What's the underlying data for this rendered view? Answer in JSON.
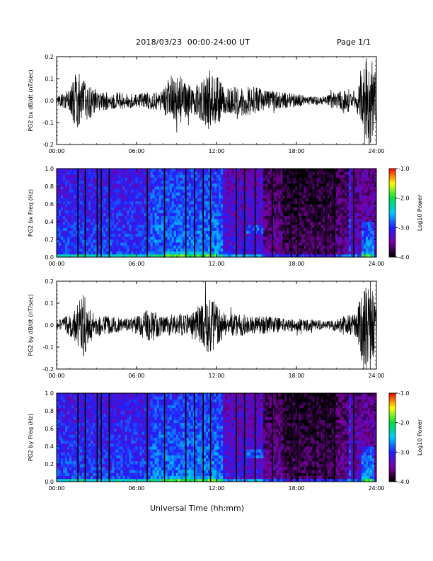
{
  "header": {
    "title": "2018/03/23  00:00-24:00 UT",
    "page": "Page 1/1"
  },
  "footer": {
    "xlabel": "Universal Time (hh:mm)"
  },
  "chart_data": [
    {
      "type": "line",
      "ylabel": "PG2 bx dB/dt (nT/sec)",
      "xlim": [
        0,
        24
      ],
      "ylim": [
        -0.2,
        0.2
      ],
      "x_ticks": [
        "00:00",
        "06:00",
        "12:00",
        "18:00",
        "24:00"
      ],
      "y_ticks": [
        "-0.2",
        "-0.1",
        "0.0",
        "0.1",
        "0.2"
      ],
      "envelope": {
        "hours": [
          0,
          1,
          1.5,
          2,
          2.5,
          3,
          4,
          5,
          6,
          7,
          8,
          8.5,
          9,
          9.5,
          10,
          10.5,
          11,
          11.5,
          12,
          12.5,
          13,
          14,
          15,
          16,
          17,
          18,
          19,
          20,
          20.5,
          21,
          21.5,
          22,
          22.5,
          23,
          23.5,
          24
        ],
        "amplitude": [
          0.02,
          0.05,
          0.14,
          0.1,
          0.08,
          0.05,
          0.04,
          0.04,
          0.03,
          0.04,
          0.05,
          0.11,
          0.16,
          0.09,
          0.07,
          0.07,
          0.1,
          0.14,
          0.12,
          0.07,
          0.06,
          0.07,
          0.06,
          0.05,
          0.04,
          0.03,
          0.02,
          0.02,
          0.03,
          0.05,
          0.06,
          0.05,
          0.04,
          0.2,
          0.25,
          0.1
        ]
      }
    },
    {
      "type": "heatmap",
      "ylabel": "PG2 bx Freq (Hz)",
      "xlim": [
        0,
        24
      ],
      "ylim": [
        0,
        1
      ],
      "x_ticks": [
        "00:00",
        "06:00",
        "12:00",
        "18:00",
        "24:00"
      ],
      "y_ticks": [
        "0.0",
        "0.2",
        "0.4",
        "0.6",
        "0.8",
        "1.0"
      ],
      "colorbar": {
        "label": "Log10 Power",
        "ticks": [
          "-1.0",
          "-2.0",
          "-3.0",
          "-4.0"
        ],
        "range": [
          -4,
          -1
        ],
        "colors": [
          "#000000",
          "#7a00a0",
          "#2020ff",
          "#00c8ff",
          "#00e040",
          "#ffff00",
          "#ff0000"
        ]
      },
      "gap_hours": [
        1.6,
        2.15,
        3.05,
        3.35,
        3.95,
        6.8,
        8.1,
        9.7,
        10.35,
        11.0,
        11.55,
        13.5,
        14.1,
        14.9,
        16.2,
        17.6,
        18.1,
        19.4,
        20.2,
        20.85,
        22.3
      ]
    },
    {
      "type": "line",
      "ylabel": "PG2 by dB/dt (nT/sec)",
      "xlim": [
        0,
        24
      ],
      "ylim": [
        -0.2,
        0.2
      ],
      "x_ticks": [
        "00:00",
        "06:00",
        "12:00",
        "18:00",
        "24:00"
      ],
      "y_ticks": [
        "-0.2",
        "-0.1",
        "0.0",
        "0.1",
        "0.2"
      ],
      "envelope": {
        "hours": [
          0,
          1,
          1.5,
          2,
          2.5,
          3,
          4,
          5,
          6,
          7,
          8,
          8.5,
          9,
          9.5,
          10,
          10.5,
          11,
          11.5,
          12,
          12.5,
          13,
          14,
          15,
          16,
          17,
          18,
          19,
          20,
          20.5,
          21,
          21.5,
          22,
          22.5,
          23,
          23.5,
          24
        ],
        "amplitude": [
          0.02,
          0.05,
          0.1,
          0.16,
          0.08,
          0.05,
          0.04,
          0.03,
          0.04,
          0.08,
          0.04,
          0.05,
          0.06,
          0.05,
          0.06,
          0.07,
          0.1,
          0.14,
          0.1,
          0.06,
          0.05,
          0.05,
          0.04,
          0.04,
          0.03,
          0.03,
          0.03,
          0.02,
          0.02,
          0.03,
          0.04,
          0.05,
          0.05,
          0.2,
          0.25,
          0.08
        ]
      }
    },
    {
      "type": "heatmap",
      "ylabel": "PG2 by Freq (Hz)",
      "xlim": [
        0,
        24
      ],
      "ylim": [
        0,
        1
      ],
      "x_ticks": [
        "00:00",
        "06:00",
        "12:00",
        "18:00",
        "24:00"
      ],
      "y_ticks": [
        "0.0",
        "0.2",
        "0.4",
        "0.6",
        "0.8",
        "1.0"
      ],
      "colorbar": {
        "label": "Log10 Power",
        "ticks": [
          "-1.0",
          "-2.0",
          "-3.0",
          "-4.0"
        ],
        "range": [
          -4,
          -1
        ],
        "colors": [
          "#000000",
          "#7a00a0",
          "#2020ff",
          "#00c8ff",
          "#00e040",
          "#ffff00",
          "#ff0000"
        ]
      },
      "gap_hours": [
        1.6,
        2.15,
        3.05,
        3.35,
        3.95,
        6.8,
        8.1,
        9.7,
        10.35,
        11.0,
        11.55,
        13.5,
        14.1,
        14.9,
        16.2,
        17.6,
        18.1,
        19.4,
        20.2,
        20.85,
        22.3
      ]
    }
  ]
}
